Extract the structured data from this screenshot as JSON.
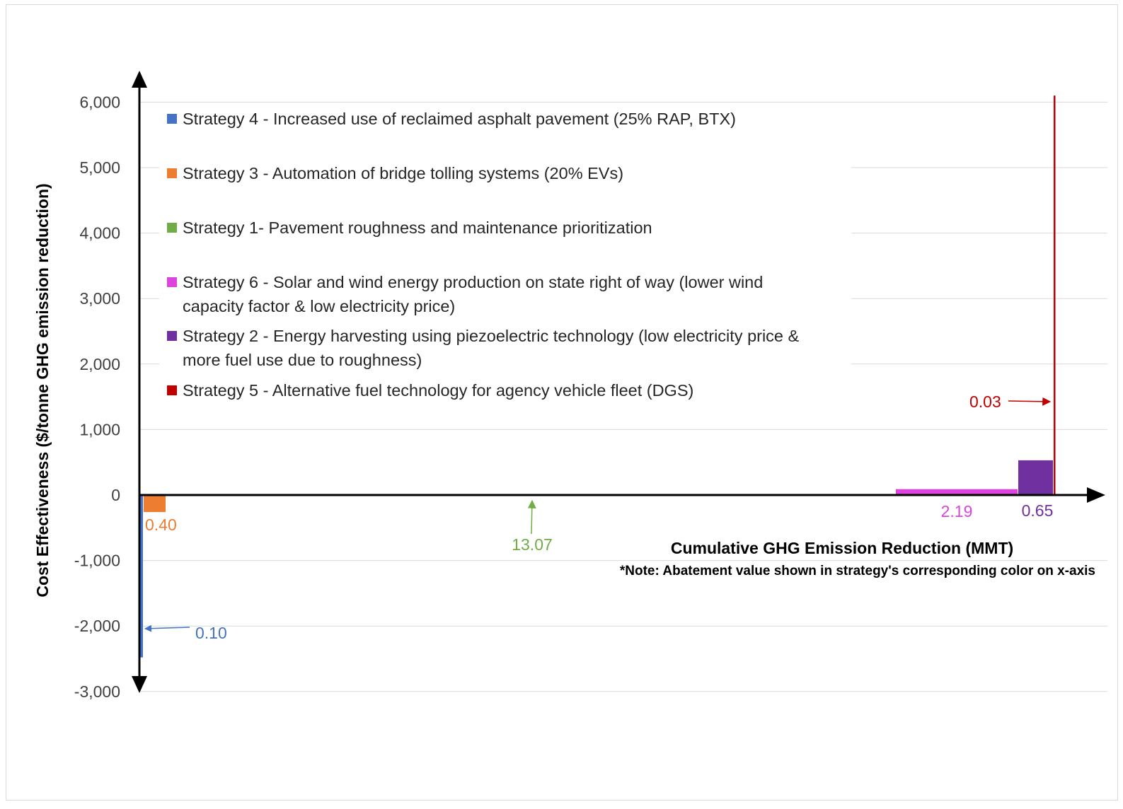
{
  "chart_data": {
    "type": "bar",
    "xlabel": "Cumulative GHG Emission Reduction (MMT)",
    "ylabel": "Cost Effectiveness ($/tonne GHG emission reduction)",
    "note": "*Note: Abatement value shown in strategy's corresponding color on x-axis",
    "ylim": [
      -3000,
      6000
    ],
    "yticks": [
      6000,
      5000,
      4000,
      3000,
      2000,
      1000,
      0,
      -1000,
      -2000,
      -3000
    ],
    "ytick_labels": [
      "6,000",
      "5,000",
      "4,000",
      "3,000",
      "2,000",
      "1,000",
      "0",
      "-1,000",
      "-2,000",
      "-3,000"
    ],
    "grid": true,
    "legend_position": "top-left",
    "series": [
      {
        "name": "Strategy 4 - Increased use of reclaimed asphalt pavement (25% RAP, BTX)",
        "color": "#4472C4",
        "width": 0.1,
        "value": -2480,
        "label": "0.10"
      },
      {
        "name": "Strategy 3 - Automation of bridge tolling systems (20% EVs)",
        "color": "#ED7D31",
        "width": 0.4,
        "value": -260,
        "label": "0.40"
      },
      {
        "name": "Strategy 1- Pavement roughness and maintenance prioritization",
        "color": "#70AD47",
        "width": 13.07,
        "value": 0,
        "label": "13.07"
      },
      {
        "name": "Strategy 6 - Solar and wind energy production on state right of way (lower wind capacity factor & low electricity price)",
        "color": "#DD44DD",
        "width": 2.19,
        "value": 90,
        "label": "2.19"
      },
      {
        "name": "Strategy 2 - Energy harvesting using piezoelectric technology (low electricity price & more fuel use due to roughness)",
        "color": "#7030A0",
        "width": 0.65,
        "value": 530,
        "label": "0.65"
      },
      {
        "name": "Strategy 5 - Alternative fuel technology for agency vehicle fleet (DGS)",
        "color": "#C00000",
        "width": 0.03,
        "value": 6100,
        "label": "0.03"
      }
    ]
  }
}
